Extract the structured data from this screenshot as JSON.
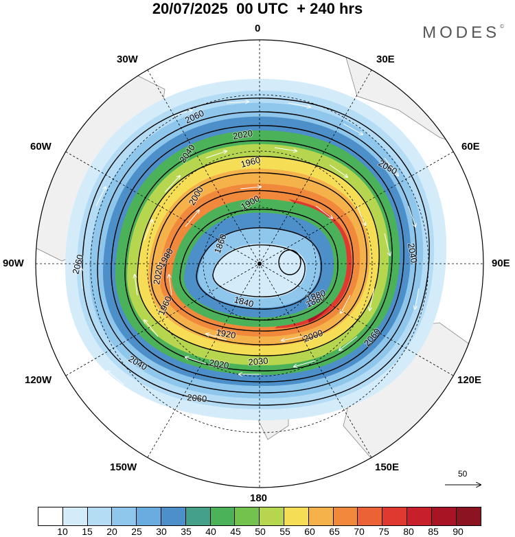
{
  "title": "20/07/2025  00 UTC  + 240 hrs",
  "brand": "MODES",
  "brand_mark": "©",
  "longitude_labels": {
    "n": "0",
    "e30": "30E",
    "e60": "60E",
    "e90": "90E",
    "e120": "120E",
    "e150": "150E",
    "s": "180",
    "w150": "150W",
    "w120": "120W",
    "w90": "90W",
    "w60": "60W",
    "w30": "30W"
  },
  "contour_labels": [
    "2060",
    "2040",
    "2020",
    "2000",
    "1960",
    "1900",
    "1880",
    "1860",
    "1840",
    "1920",
    "2020",
    "2060",
    "2040",
    "2060",
    "2060",
    "2020",
    "1980",
    "1960",
    "2040",
    "1880",
    "2000",
    "2030",
    "2060"
  ],
  "wind_scale": {
    "value": "50",
    "icon": "arrow-right-icon"
  },
  "colorbar": {
    "colors": [
      "#ffffff",
      "#d4ecfa",
      "#b4dcf5",
      "#8ec6ec",
      "#6aabe0",
      "#4d8fc8",
      "#45a08a",
      "#4cb25a",
      "#74c24e",
      "#b7d64f",
      "#f5de56",
      "#f5b14a",
      "#f0893c",
      "#ea6235",
      "#e0392f",
      "#c8202a",
      "#a81424",
      "#8b1420"
    ],
    "tick_labels": [
      "10",
      "15",
      "20",
      "25",
      "30",
      "35",
      "40",
      "45",
      "50",
      "55",
      "60",
      "65",
      "70",
      "75",
      "80",
      "85",
      "90"
    ]
  }
}
